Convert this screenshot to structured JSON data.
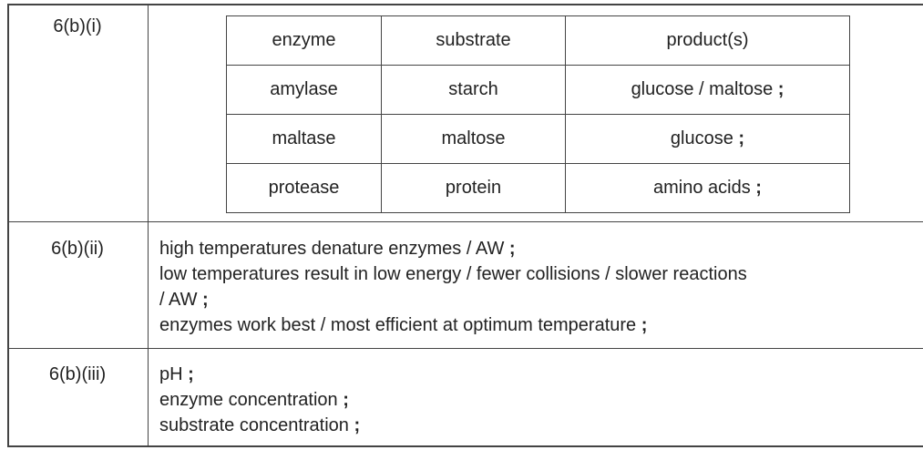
{
  "rows": [
    {
      "label": "6(b)(i)",
      "table": {
        "headers": [
          "enzyme",
          "substrate",
          "product(s)"
        ],
        "rows": [
          {
            "enzyme": "amylase",
            "substrate": "starch",
            "product": "glucose / maltose",
            "mark": ";"
          },
          {
            "enzyme": "maltase",
            "substrate": "maltose",
            "product": "glucose",
            "mark": ";"
          },
          {
            "enzyme": "protease",
            "substrate": "protein",
            "product": "amino acids",
            "mark": ";"
          }
        ]
      }
    },
    {
      "label": "6(b)(ii)",
      "lines": [
        {
          "text": "high temperatures denature enzymes / AW",
          "mark": ";"
        },
        {
          "text": "low temperatures result in low energy / fewer collisions / slower reactions",
          "mark": ""
        },
        {
          "text": " / AW",
          "mark": ";"
        },
        {
          "text": "enzymes work best / most efficient at optimum temperature",
          "mark": ";"
        }
      ]
    },
    {
      "label": "6(b)(iii)",
      "lines": [
        {
          "text": "pH",
          "mark": ";"
        },
        {
          "text": "enzyme concentration",
          "mark": ";"
        },
        {
          "text": "substrate concentration",
          "mark": ";"
        }
      ]
    }
  ]
}
